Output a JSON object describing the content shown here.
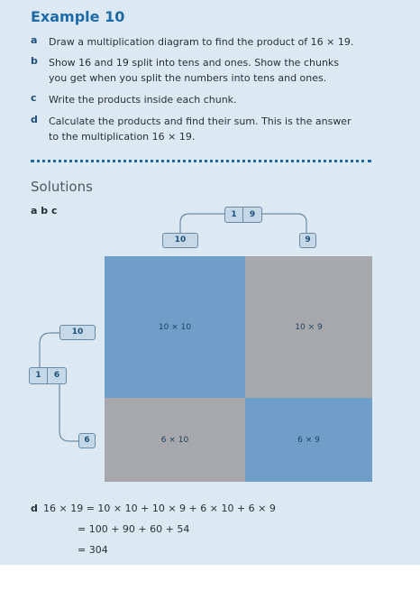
{
  "example_title": "Example 10",
  "items": [
    {
      "letter": "a",
      "lines": [
        "Draw a multiplication diagram to find the product of 16 × 19."
      ]
    },
    {
      "letter": "b",
      "lines": [
        "Show 16 and 19 split into tens and ones. Show the chunks",
        "you get when you split the numbers into tens and ones."
      ]
    },
    {
      "letter": "c",
      "lines": [
        "Write the products inside each chunk."
      ]
    },
    {
      "letter": "d",
      "lines": [
        "Calculate the products and find their sum. This is the answer",
        "to the multiplication 16 × 19."
      ]
    }
  ],
  "solutions_heading": "Solutions",
  "abc_label": "a b c",
  "diagram": {
    "top_split": [
      "1",
      "9"
    ],
    "top_tens": "10",
    "top_ones": "9",
    "left_split": [
      "1",
      "6"
    ],
    "left_tens": "10",
    "left_ones": "6",
    "cells": {
      "tl": "10 × 10",
      "tr": "10 × 9",
      "bl": "6 × 10",
      "br": "6 × 9"
    },
    "colors": {
      "blue": "#6f9fc8",
      "gray": "#a6a8ab"
    }
  },
  "working": {
    "letter": "d",
    "line1": "16 × 19  = 10 × 10 + 10 × 9 + 6 × 10 + 6 × 9",
    "line2": "= 100 + 90 + 60 + 54",
    "line3": "= 304"
  }
}
